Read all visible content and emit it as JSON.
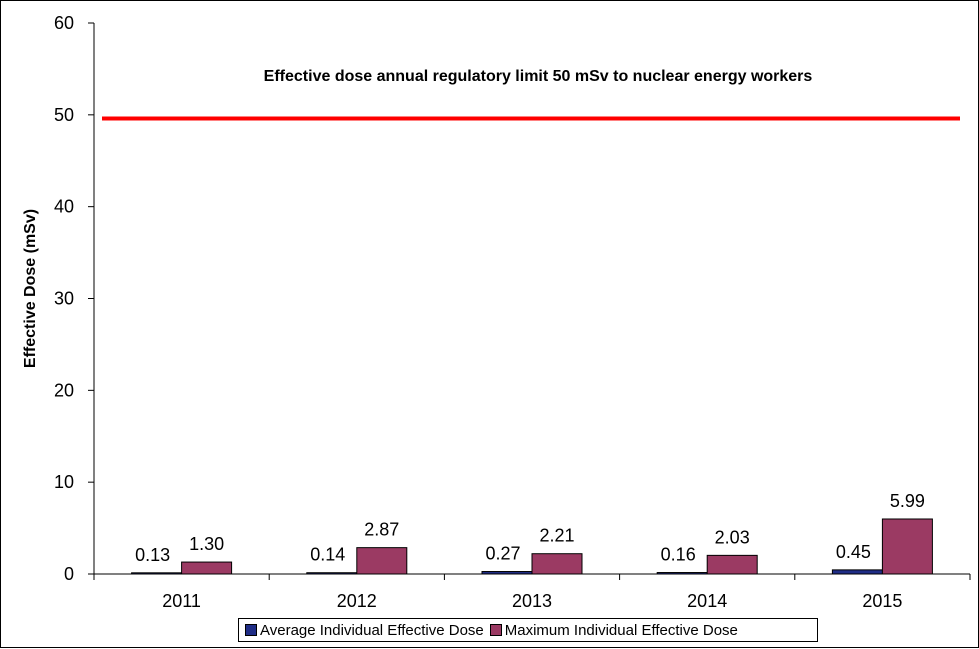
{
  "chart_data": {
    "type": "bar",
    "ylabel": "Effective Dose (mSv)",
    "xlabel": "",
    "ylim": [
      0,
      60
    ],
    "yticks": [
      0,
      10,
      20,
      30,
      40,
      50,
      60
    ],
    "grid": false,
    "legend_position": "bottom",
    "categories": [
      "2011",
      "2012",
      "2013",
      "2014",
      "2015"
    ],
    "series": [
      {
        "name": "Average Individual Effective Dose",
        "values": [
          0.13,
          0.14,
          0.27,
          0.16,
          0.45
        ],
        "labels": [
          "0.13",
          "0.14",
          "0.27",
          "0.16",
          "0.45"
        ],
        "color": "#1f2d86"
      },
      {
        "name": "Maximum Individual Effective Dose",
        "values": [
          1.3,
          2.87,
          2.21,
          2.03,
          5.99
        ],
        "labels": [
          "1.30",
          "2.87",
          "2.21",
          "2.03",
          "5.99"
        ],
        "color": "#9b3a63"
      }
    ],
    "reference_line": {
      "value": 49.6,
      "color": "#ff0000",
      "annotation": "Effective dose annual regulatory limit 50 mSv to nuclear energy workers"
    }
  }
}
